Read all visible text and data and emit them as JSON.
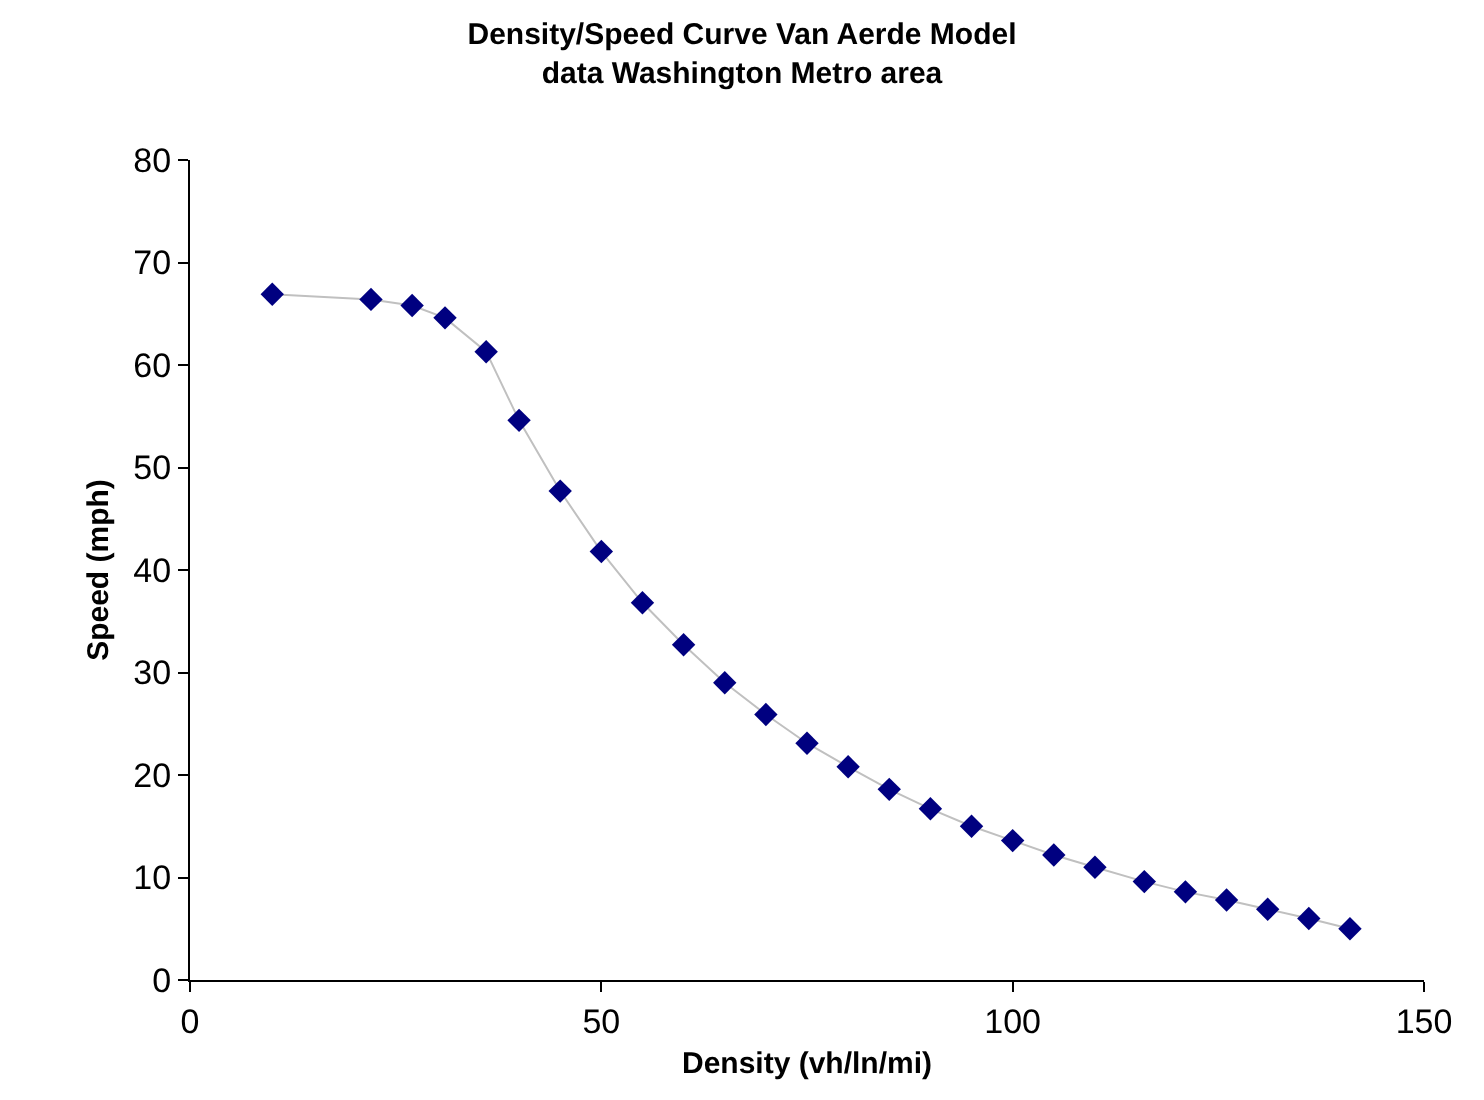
{
  "chart_data": {
    "type": "line",
    "title": "Density/Speed Curve Van Aerde Model\ndata Washington Metro area",
    "xlabel": "Density (vh/ln/mi)",
    "ylabel": "Speed (mph)",
    "x": [
      10,
      22,
      27,
      31,
      36,
      40,
      45,
      50,
      55,
      60,
      65,
      70,
      75,
      80,
      85,
      90,
      95,
      100,
      105,
      110,
      116,
      121,
      126,
      131,
      136,
      141
    ],
    "series": [
      {
        "color": "#000080",
        "values": [
          66.9,
          66.4,
          65.8,
          64.6,
          61.3,
          54.6,
          47.7,
          41.8,
          36.8,
          32.7,
          29,
          25.9,
          23.1,
          20.8,
          18.6,
          16.7,
          15,
          13.6,
          12.2,
          11,
          9.6,
          8.6,
          7.8,
          6.9,
          6,
          5
        ]
      }
    ],
    "xlim": [
      0,
      150
    ],
    "xticks": [
      0,
      50,
      100,
      150
    ],
    "ylim": [
      0,
      80
    ],
    "yticks": [
      0,
      10,
      20,
      30,
      40,
      50,
      60,
      70,
      80
    ],
    "marker": "diamond"
  }
}
